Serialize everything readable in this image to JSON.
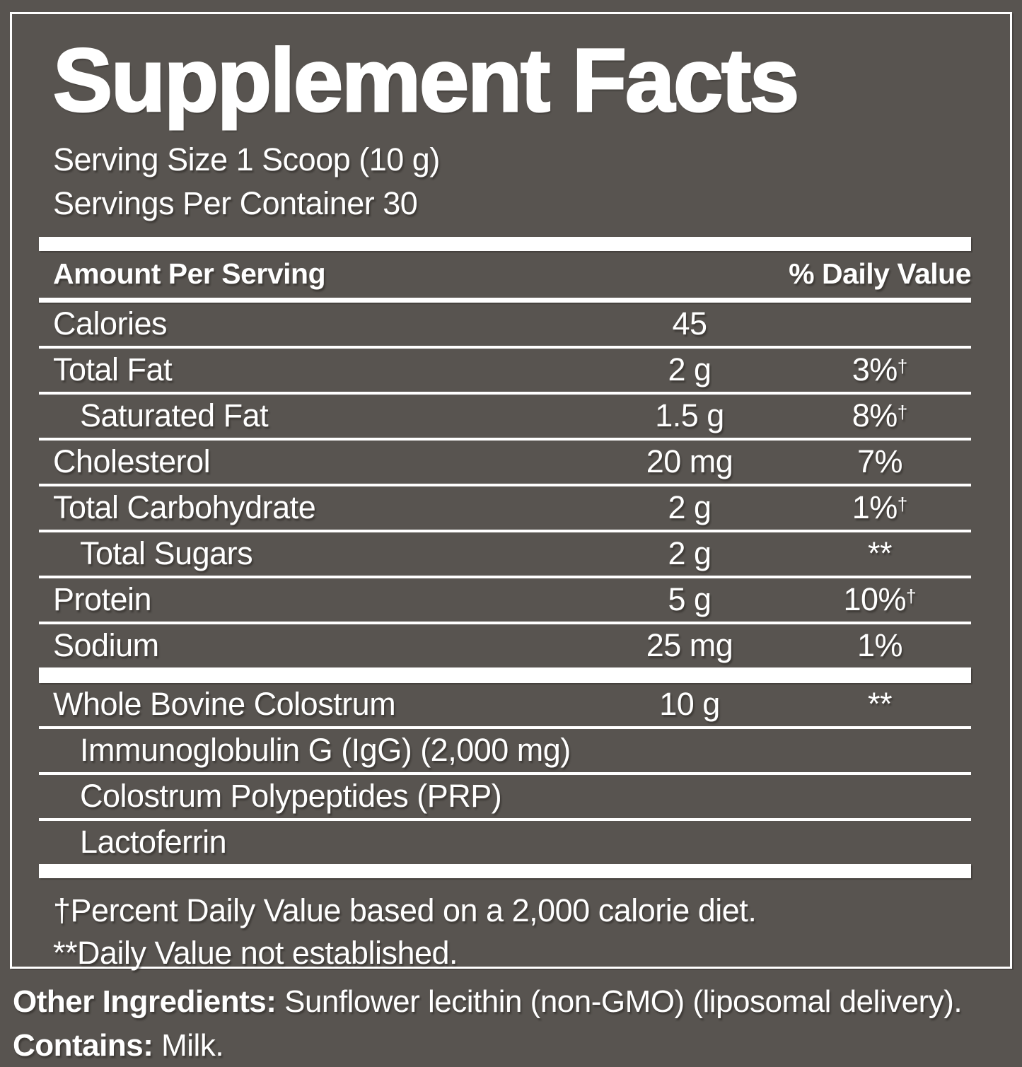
{
  "colors": {
    "background": "#585450",
    "text": "#ffffff"
  },
  "title": "Supplement Facts",
  "serving_info": {
    "serving_size": "Serving Size 1 Scoop (10 g)",
    "servings_per_container": "Servings Per Container 30"
  },
  "table_header": {
    "amount_label": "Amount Per Serving",
    "dv_label": "% Daily Value"
  },
  "nutrient_rows": [
    {
      "label": "Calories",
      "amount": "45",
      "dv": "",
      "dv_sup": ""
    },
    {
      "label": "Total Fat",
      "amount": "2 g",
      "dv": "3%",
      "dv_sup": "†"
    },
    {
      "label": "Saturated Fat",
      "amount": "1.5 g",
      "dv": "8%",
      "dv_sup": "†"
    },
    {
      "label": "Cholesterol",
      "amount": "20 mg",
      "dv": "7%",
      "dv_sup": ""
    },
    {
      "label": "Total Carbohydrate",
      "amount": "2 g",
      "dv": "1%",
      "dv_sup": "†"
    },
    {
      "label": "Total Sugars",
      "amount": "2 g",
      "dv": "**",
      "dv_sup": ""
    },
    {
      "label": "Protein",
      "amount": "5 g",
      "dv": "10%",
      "dv_sup": "†"
    },
    {
      "label": "Sodium",
      "amount": "25 mg",
      "dv": "1%",
      "dv_sup": ""
    }
  ],
  "colostrum_rows": [
    {
      "label": "Whole Bovine Colostrum",
      "amount": "10 g",
      "dv": "**",
      "dv_sup": ""
    },
    {
      "label": "Immunoglobulin G (IgG) (2,000 mg)",
      "amount": "",
      "dv": "",
      "dv_sup": ""
    },
    {
      "label": "Colostrum Polypeptides (PRP)",
      "amount": "",
      "dv": "",
      "dv_sup": ""
    },
    {
      "label": "Lactoferrin",
      "amount": "",
      "dv": "",
      "dv_sup": ""
    }
  ],
  "footnotes": {
    "dagger": "†Percent Daily Value based on a 2,000 calorie diet.",
    "asterisk": "**Daily Value not established."
  },
  "other_ingredients": {
    "label": "Other Ingredients:",
    "value": " Sunflower lecithin (non-GMO) (liposomal delivery)."
  },
  "contains": {
    "label": "Contains:",
    "value": " Milk."
  }
}
